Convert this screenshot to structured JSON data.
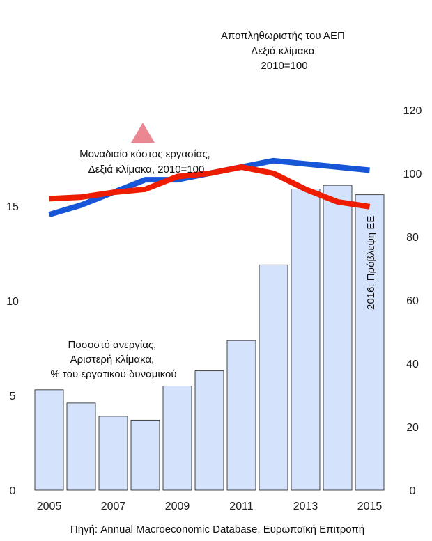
{
  "chart_data": {
    "type": "bar+line",
    "x": [
      2005,
      2006,
      2007,
      2008,
      2009,
      2010,
      2011,
      2012,
      2013,
      2014,
      2015
    ],
    "x_tick_labels": [
      "2005",
      "2007",
      "2009",
      "2011",
      "2013",
      "2015"
    ],
    "left_axis": {
      "ylim": [
        0,
        16.5
      ],
      "ticks": [
        "0",
        "5",
        "10",
        "15"
      ]
    },
    "right_axis": {
      "ylim": [
        0,
        120
      ],
      "ticks": [
        "0",
        "20",
        "40",
        "60",
        "80",
        "100",
        "120"
      ]
    },
    "series": [
      {
        "type": "bar",
        "axis": "left",
        "color": "#d4e3fb",
        "values": [
          5.3,
          4.6,
          3.9,
          3.7,
          5.5,
          6.3,
          7.9,
          11.9,
          15.9,
          16.1,
          15.6
        ]
      },
      {
        "type": "line",
        "axis": "right",
        "color": "#1856d8",
        "values": [
          87,
          90,
          94,
          98,
          98,
          100,
          102,
          104,
          103,
          102,
          101
        ]
      },
      {
        "type": "line",
        "axis": "right",
        "color": "#ee1c00",
        "values": [
          92,
          92.5,
          94,
          95,
          99,
          100,
          102,
          100,
          95,
          91,
          89.5
        ]
      }
    ],
    "annotations": {
      "gdp_deflator": [
        "Αποπληθωριστής του ΑΕΠ",
        "Δεξιά κλίμακα",
        "2010=100"
      ],
      "unit_labour_cost": [
        "Μοναδιαίο κόστος εργασίας,",
        "Δεξιά κλίμακα, 2010=100"
      ],
      "unemployment": [
        "Ποσοστό ανεργίας,",
        "Αριστερή κλίμακα,",
        "% του εργατικού δυναμικού"
      ],
      "forecast": "2016: Πρόβλεψη ΕΕ"
    },
    "marker_color": "#e87a84",
    "source": "Πηγή: Annual Macroeconomic Database, Ευρωπαϊκή Επιτροπή"
  }
}
